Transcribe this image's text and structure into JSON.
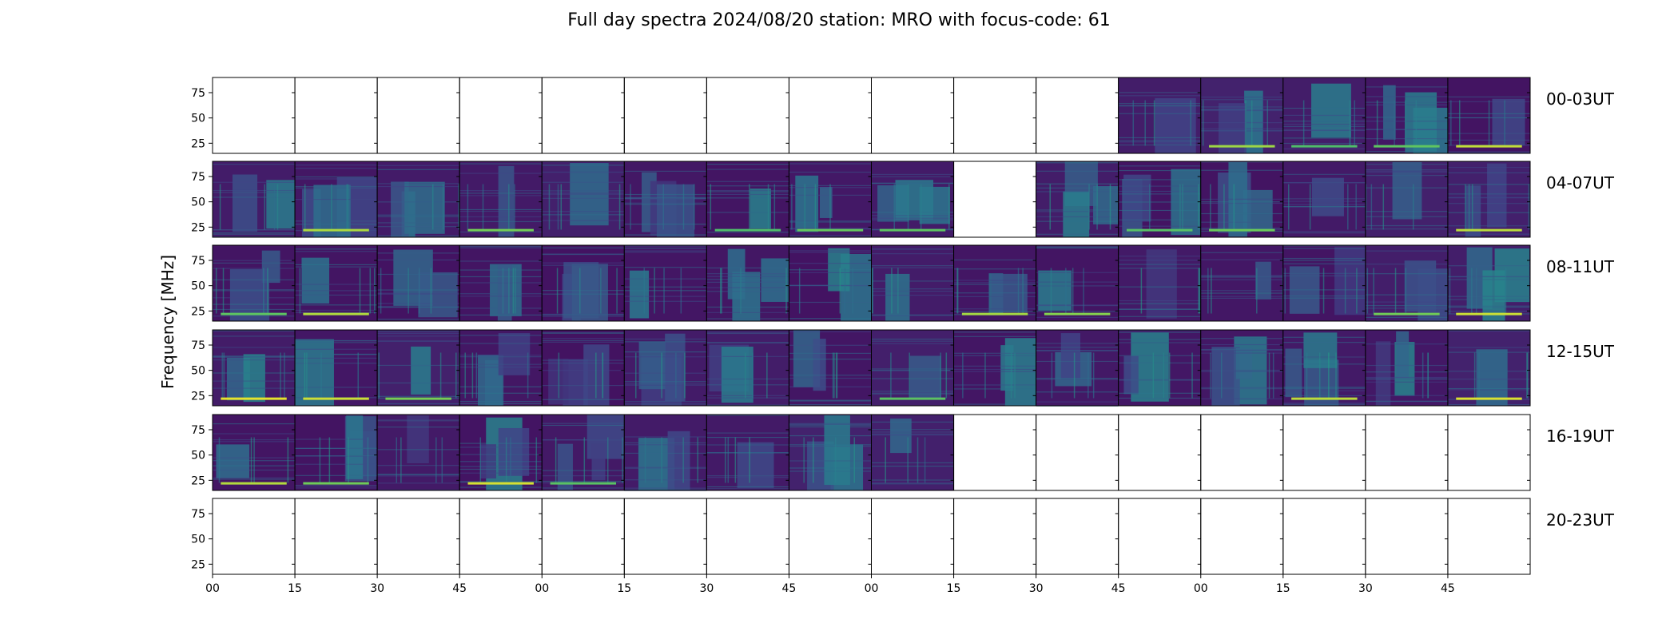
{
  "chart_data": {
    "type": "heatmap",
    "title": "Full day spectra 2024/08/20 station: MRO with focus-code: 61",
    "ylabel": "Frequency [MHz]",
    "y_ticks": [
      25,
      50,
      75
    ],
    "ylim": [
      15,
      90
    ],
    "x_tick_labels": [
      "00",
      "15",
      "30",
      "45",
      "00",
      "15",
      "30",
      "45",
      "00",
      "15",
      "30",
      "45",
      "00",
      "15",
      "30",
      "45"
    ],
    "rows": [
      {
        "label": "00-03UT",
        "panels": [
          0,
          0,
          0,
          0,
          0,
          0,
          0,
          0,
          0,
          0,
          0,
          1,
          1,
          1,
          1,
          1
        ]
      },
      {
        "label": "04-07UT",
        "panels": [
          1,
          1,
          1,
          1,
          1,
          1,
          1,
          1,
          1,
          0,
          1,
          1,
          1,
          1,
          1,
          1
        ]
      },
      {
        "label": "08-11UT",
        "panels": [
          1,
          1,
          1,
          1,
          1,
          1,
          1,
          1,
          1,
          1,
          1,
          1,
          1,
          1,
          1,
          1
        ]
      },
      {
        "label": "12-15UT",
        "panels": [
          1,
          1,
          1,
          1,
          1,
          1,
          1,
          1,
          1,
          1,
          1,
          1,
          1,
          1,
          1,
          1
        ]
      },
      {
        "label": "16-19UT",
        "panels": [
          1,
          1,
          1,
          1,
          1,
          1,
          1,
          1,
          1,
          0,
          0,
          0,
          0,
          0,
          0,
          0
        ]
      },
      {
        "label": "20-23UT",
        "panels": [
          0,
          0,
          0,
          0,
          0,
          0,
          0,
          0,
          0,
          0,
          0,
          0,
          0,
          0,
          0,
          0
        ]
      }
    ],
    "colormap": "viridis",
    "colors": {
      "background": "#3b0f55",
      "mid": "#31688e",
      "high": "#35b779",
      "peak": "#fde725"
    }
  }
}
